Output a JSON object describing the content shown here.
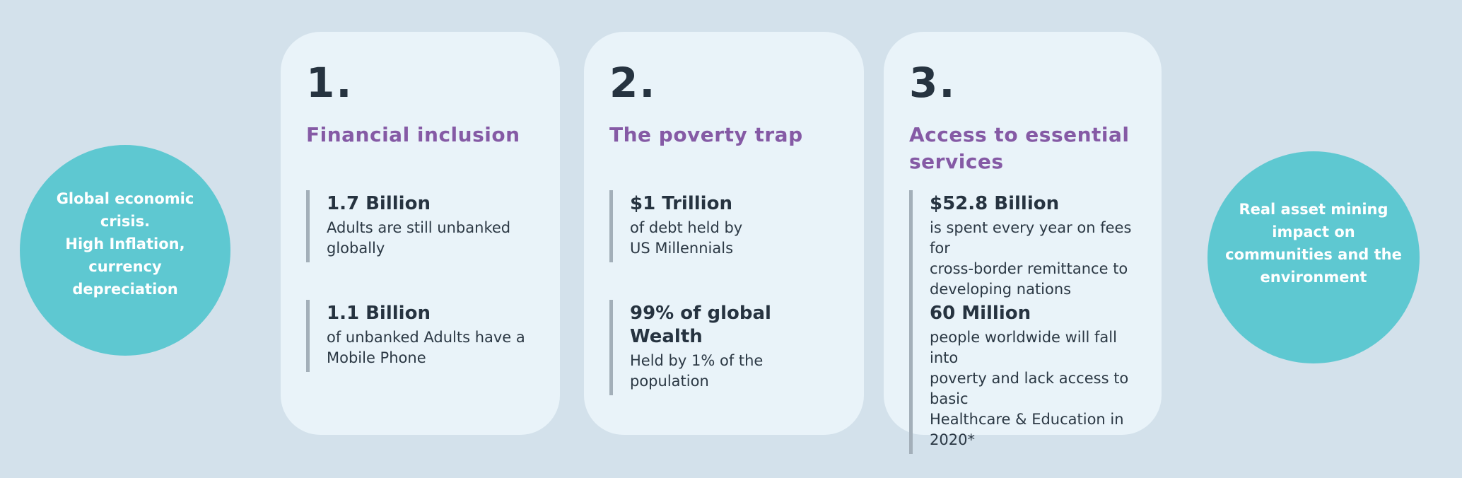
{
  "colors": {
    "page_background": "#d3e1eb",
    "card_background": "#e9f3f9",
    "circle_teal": "#5ec8d1",
    "circle_text": "#ffffff",
    "heading_purple": "#855aa5",
    "text_dark": "#263340",
    "stat_bar_gray": "#a3afb9"
  },
  "left_circle": {
    "text": "Global economic\ncrisis.\nHigh Inflation,\ncurrency\ndepreciation"
  },
  "right_circle": {
    "text": "Real asset  mining\nimpact on\ncommunities and the\nenvironment"
  },
  "cards": [
    {
      "number": "1.",
      "heading": "Financial inclusion",
      "stats": [
        {
          "value": "1.7 Billion",
          "desc": "Adults are still unbanked\nglobally"
        },
        {
          "value": "1.1 Billion",
          "desc": "of unbanked Adults have a\nMobile Phone"
        }
      ]
    },
    {
      "number": "2.",
      "heading": "The poverty trap",
      "stats": [
        {
          "value": "$1 Trillion",
          "desc": "of debt held by\nUS Millennials"
        },
        {
          "value": "99% of global Wealth",
          "desc": "Held by 1% of the\npopulation"
        }
      ]
    },
    {
      "number": "3.",
      "heading": "Access to essential\nservices",
      "stats": [
        {
          "value": "$52.8 Billion",
          "desc": "is spent every year on fees for\ncross-border remittance to\ndeveloping nations"
        },
        {
          "value": "60 Million",
          "desc": "people worldwide will fall into\npoverty and lack access to basic\nHealthcare & Education in 2020*"
        }
      ]
    }
  ]
}
